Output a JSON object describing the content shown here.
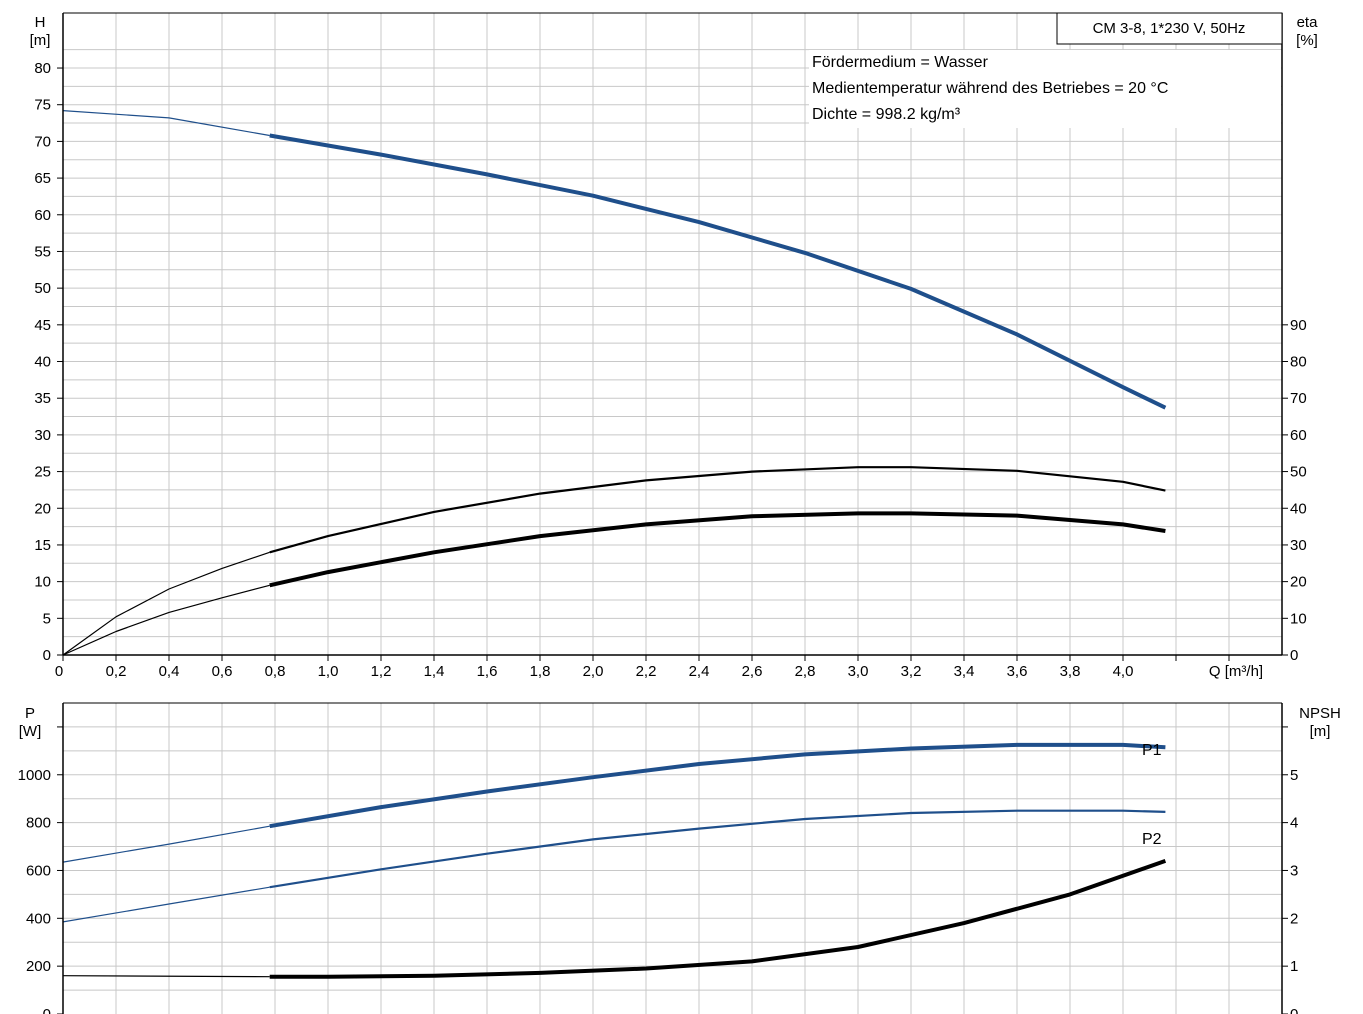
{
  "colors": {
    "blue": "#1f4f8b",
    "black": "#000000",
    "grid": "#c8c8c8"
  },
  "chart_data": [
    {
      "type": "line",
      "left_axis": {
        "label_lines": [
          "H",
          "[m]"
        ],
        "ylim": [
          0,
          87.5
        ],
        "ticks": [
          0,
          5,
          10,
          15,
          20,
          25,
          30,
          35,
          40,
          45,
          50,
          55,
          60,
          65,
          70,
          75,
          80
        ]
      },
      "right_axis": {
        "label_lines": [
          "eta",
          "[%]"
        ],
        "ylim": [
          0,
          175
        ],
        "ticks": [
          0,
          10,
          20,
          30,
          40,
          50,
          60,
          70,
          80,
          90
        ]
      },
      "x_axis": {
        "xlabel": "Q [m³/h]",
        "xlim": [
          0,
          4.6
        ],
        "ticks": [
          0,
          0.2,
          0.4,
          0.6,
          0.8,
          1.0,
          1.2,
          1.4,
          1.6,
          1.8,
          2.0,
          2.2,
          2.4,
          2.6,
          2.8,
          3.0,
          3.2,
          3.4,
          3.6,
          3.8,
          4.0
        ],
        "tick_labels": [
          "0",
          "0,2",
          "0,4",
          "0,6",
          "0,8",
          "1,0",
          "1,2",
          "1,4",
          "1,6",
          "1,8",
          "2,0",
          "2,2",
          "2,4",
          "2,6",
          "2,8",
          "3,0",
          "3,2",
          "3,4",
          "3,6",
          "3,8",
          "4,0"
        ]
      },
      "title": "CM 3-8, 1*230 V, 50Hz",
      "info_lines": [
        "Fördermedium = Wasser",
        "Medientemperatur während des Betriebes = 20 °C",
        "Dichte = 998.2 kg/m³"
      ],
      "grid": true,
      "series": [
        {
          "axis": "left",
          "color": "blue",
          "x": [
            0,
            0.4,
            0.78,
            1.2,
            1.6,
            2.0,
            2.4,
            2.8,
            3.2,
            3.6,
            4.0,
            4.16
          ],
          "values": [
            74.2,
            73.2,
            70.8,
            68.2,
            65.5,
            62.6,
            59.0,
            54.8,
            49.9,
            43.7,
            36.5,
            33.7
          ]
        },
        {
          "axis": "left",
          "color": "black",
          "x": [
            0,
            0.2,
            0.4,
            0.6,
            0.78,
            1.0,
            1.4,
            1.8,
            2.2,
            2.6,
            3.0,
            3.2,
            3.6,
            4.0,
            4.16
          ],
          "values": [
            0,
            5.2,
            9.0,
            11.8,
            14.0,
            16.2,
            19.5,
            22.0,
            23.8,
            25.0,
            25.6,
            25.6,
            25.1,
            23.6,
            22.4
          ]
        },
        {
          "axis": "left",
          "color": "black",
          "x": [
            0,
            0.2,
            0.4,
            0.6,
            0.78,
            1.0,
            1.4,
            1.8,
            2.2,
            2.6,
            3.0,
            3.2,
            3.6,
            4.0,
            4.16
          ],
          "values": [
            0,
            3.2,
            5.8,
            7.8,
            9.5,
            11.3,
            14.0,
            16.2,
            17.8,
            18.9,
            19.3,
            19.3,
            19.0,
            17.8,
            16.9
          ]
        }
      ]
    },
    {
      "type": "line",
      "left_axis": {
        "label_lines": [
          "P",
          "[W]"
        ],
        "ylim": [
          0,
          1300
        ],
        "ticks": [
          0,
          200,
          400,
          600,
          800,
          1000,
          1200
        ],
        "tick_labels": [
          "0",
          "200",
          "400",
          "600",
          "800",
          "1000",
          ""
        ]
      },
      "right_axis": {
        "label_lines": [
          "NPSH",
          "[m]"
        ],
        "ylim": [
          0,
          6.5
        ],
        "ticks": [
          0,
          1,
          2,
          3,
          4,
          5,
          6
        ],
        "tick_labels": [
          "0",
          "1",
          "2",
          "3",
          "4",
          "5",
          ""
        ]
      },
      "x_axis": {
        "xlim": [
          0,
          4.6
        ]
      },
      "grid": true,
      "series": [
        {
          "name": "P1",
          "axis": "left",
          "color": "blue",
          "x": [
            0,
            0.4,
            0.78,
            1.2,
            1.6,
            2.0,
            2.4,
            2.8,
            3.2,
            3.6,
            4.0,
            4.16
          ],
          "values": [
            635,
            710,
            785,
            865,
            930,
            990,
            1045,
            1085,
            1110,
            1125,
            1125,
            1115
          ]
        },
        {
          "name": "P2",
          "axis": "left",
          "color": "blue",
          "x": [
            0,
            0.4,
            0.78,
            1.2,
            1.6,
            2.0,
            2.4,
            2.8,
            3.2,
            3.6,
            4.0,
            4.16
          ],
          "values": [
            385,
            460,
            530,
            605,
            670,
            730,
            775,
            815,
            840,
            850,
            850,
            845
          ]
        },
        {
          "axis": "right",
          "color": "black",
          "x": [
            0,
            0.78,
            1.0,
            1.4,
            1.8,
            2.2,
            2.6,
            3.0,
            3.4,
            3.8,
            4.16
          ],
          "values": [
            0.8,
            0.78,
            0.78,
            0.8,
            0.86,
            0.95,
            1.1,
            1.4,
            1.9,
            2.5,
            3.2
          ]
        }
      ]
    }
  ]
}
